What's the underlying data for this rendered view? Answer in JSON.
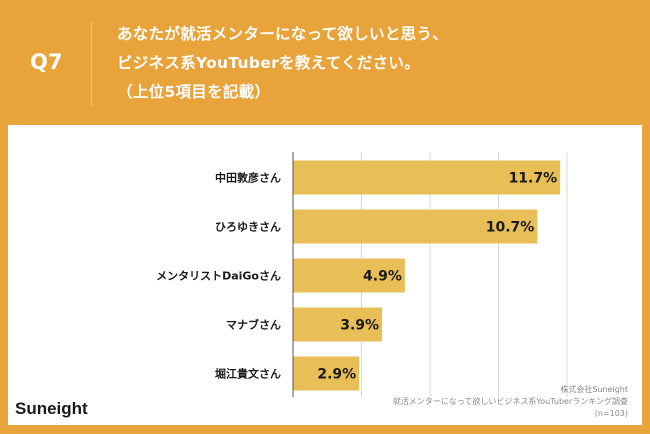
{
  "header": {
    "question": "Q7",
    "title_lines": [
      "あなたが就活メンターになって欲しいと思う、",
      "ビジネス系YouTuberを教えてください。",
      "（上位5項目を記載）"
    ]
  },
  "logo": "Suneight",
  "source": {
    "company": "株式会社Suneight",
    "survey": "就活メンターになって欲しいビジネス系YouTuberランキング調査",
    "n": "(n=103)"
  },
  "colors": {
    "background": "#E8A33A",
    "bar": "#E8BE57",
    "grid": "#D9D9D9"
  },
  "chart_data": {
    "type": "bar",
    "orientation": "horizontal",
    "title": "",
    "categories": [
      "中田敦彦さん",
      "ひろゆきさん",
      "メンタリストDaiGoさん",
      "マナブさん",
      "堀江貴文さん"
    ],
    "values": [
      11.7,
      10.7,
      4.9,
      3.9,
      2.9
    ],
    "labels": [
      "11.7%",
      "10.7%",
      "4.9%",
      "3.9%",
      "2.9%"
    ],
    "xlim": [
      0,
      12
    ],
    "grid_step": 3,
    "grid": true,
    "unit": "%"
  }
}
